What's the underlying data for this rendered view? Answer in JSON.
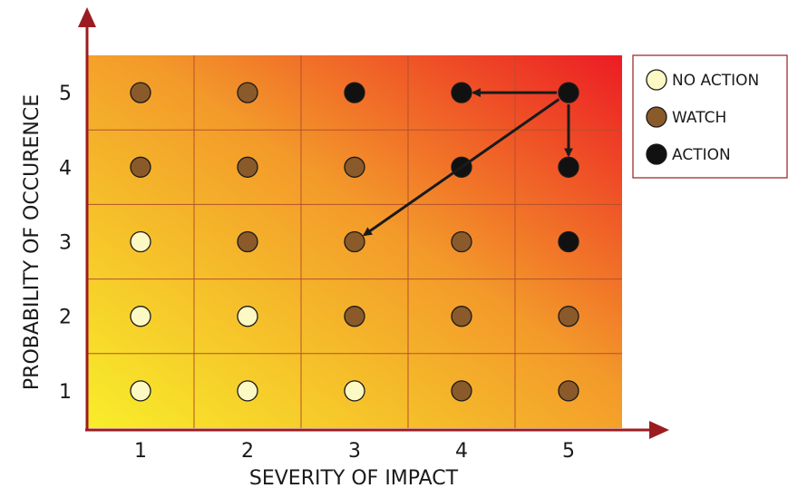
{
  "chart_data": {
    "type": "heatmap",
    "title": "",
    "xlabel": "SEVERITY OF IMPACT",
    "ylabel": "PROBABILITY OF OCCURENCE",
    "x_ticks": [
      "1",
      "2",
      "3",
      "4",
      "5"
    ],
    "y_ticks": [
      "1",
      "2",
      "3",
      "4",
      "5"
    ],
    "status_colors": {
      "no_action": "#fdf9c4",
      "watch": "#8a5a2b",
      "action": "#111111"
    },
    "gradient_colors": [
      "#f8ee2a",
      "#f39a2a",
      "#ec1c24"
    ],
    "axis_color": "#9b1c20",
    "grid_color": "#b5502c",
    "legend": [
      {
        "key": "no_action",
        "label": "NO ACTION"
      },
      {
        "key": "watch",
        "label": "WATCH"
      },
      {
        "key": "action",
        "label": "ACTION"
      }
    ],
    "cells": [
      {
        "severity": 1,
        "probability": 5,
        "status": "watch"
      },
      {
        "severity": 2,
        "probability": 5,
        "status": "watch"
      },
      {
        "severity": 3,
        "probability": 5,
        "status": "action"
      },
      {
        "severity": 4,
        "probability": 5,
        "status": "action"
      },
      {
        "severity": 5,
        "probability": 5,
        "status": "action"
      },
      {
        "severity": 1,
        "probability": 4,
        "status": "watch"
      },
      {
        "severity": 2,
        "probability": 4,
        "status": "watch"
      },
      {
        "severity": 3,
        "probability": 4,
        "status": "watch"
      },
      {
        "severity": 4,
        "probability": 4,
        "status": "action"
      },
      {
        "severity": 5,
        "probability": 4,
        "status": "action"
      },
      {
        "severity": 1,
        "probability": 3,
        "status": "no_action"
      },
      {
        "severity": 2,
        "probability": 3,
        "status": "watch"
      },
      {
        "severity": 3,
        "probability": 3,
        "status": "watch"
      },
      {
        "severity": 4,
        "probability": 3,
        "status": "watch"
      },
      {
        "severity": 5,
        "probability": 3,
        "status": "action"
      },
      {
        "severity": 1,
        "probability": 2,
        "status": "no_action"
      },
      {
        "severity": 2,
        "probability": 2,
        "status": "no_action"
      },
      {
        "severity": 3,
        "probability": 2,
        "status": "watch"
      },
      {
        "severity": 4,
        "probability": 2,
        "status": "watch"
      },
      {
        "severity": 5,
        "probability": 2,
        "status": "watch"
      },
      {
        "severity": 1,
        "probability": 1,
        "status": "no_action"
      },
      {
        "severity": 2,
        "probability": 1,
        "status": "no_action"
      },
      {
        "severity": 3,
        "probability": 1,
        "status": "no_action"
      },
      {
        "severity": 4,
        "probability": 1,
        "status": "watch"
      },
      {
        "severity": 5,
        "probability": 1,
        "status": "watch"
      }
    ],
    "arrows": [
      {
        "from": {
          "severity": 5,
          "probability": 5
        },
        "to": {
          "severity": 4,
          "probability": 5
        }
      },
      {
        "from": {
          "severity": 5,
          "probability": 5
        },
        "to": {
          "severity": 5,
          "probability": 4
        }
      },
      {
        "from": {
          "severity": 5,
          "probability": 5
        },
        "to": {
          "severity": 3,
          "probability": 3
        }
      }
    ]
  }
}
